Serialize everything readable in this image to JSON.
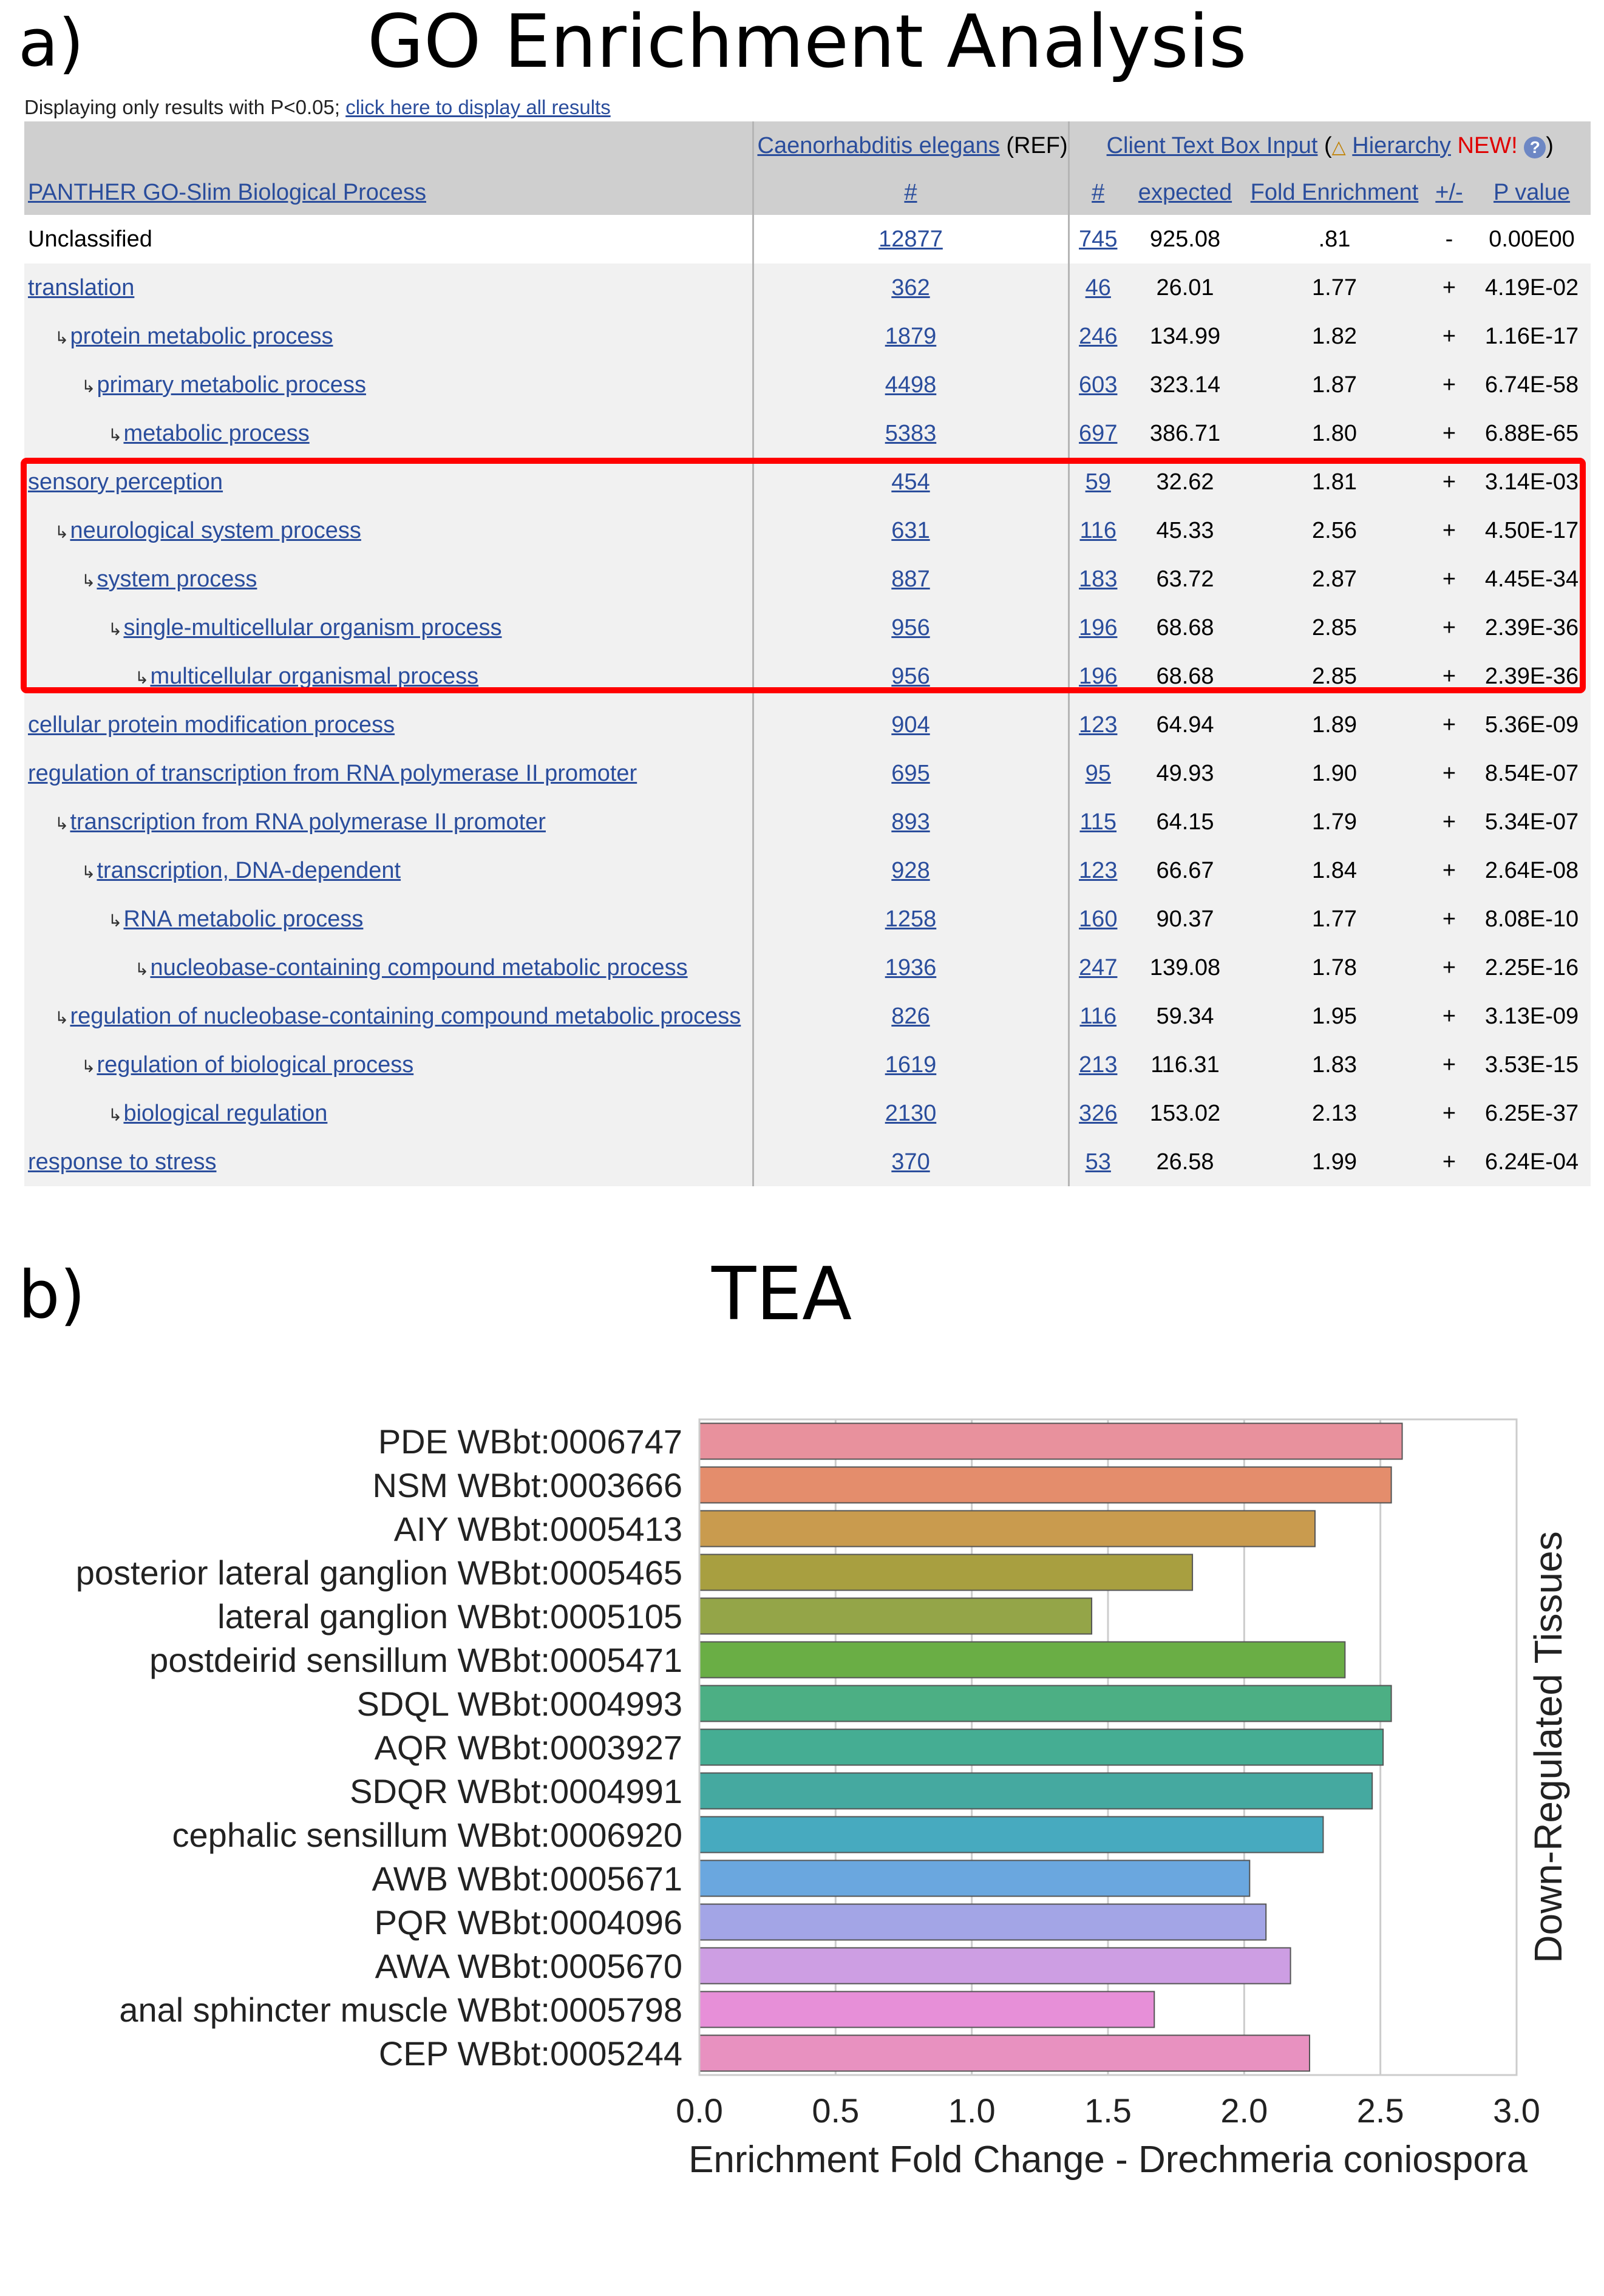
{
  "panel_a": {
    "label": "a)",
    "title": "GO Enrichment Analysis",
    "filter_note": "Displaying only results with P<0.05;",
    "filter_link": "click here to display all results",
    "table": {
      "ref_organism": "Caenorhabditis elegans",
      "ref_suffix": "(REF)",
      "client_input": "Client Text Box Input",
      "client_open": "(",
      "warn_icon": "warning-triangle-icon",
      "hierarchy_link": "Hierarchy",
      "new_label": "NEW!",
      "client_close": ")",
      "help_icon": "question-icon",
      "col_process": "PANTHER GO-Slim Biological Process",
      "col_ref_count": "#",
      "col_count": "#",
      "col_expected": "expected",
      "col_fold": "Fold Enrichment",
      "col_sign": "+/-",
      "col_p": "P value",
      "rows": [
        {
          "indent": 0,
          "name": "Unclassified",
          "ref": "12877",
          "count": "745",
          "expected": "925.08",
          "fold": ".81",
          "sign": "-",
          "p": "0.00E00"
        },
        {
          "indent": 0,
          "name": "translation",
          "ref": "362",
          "count": "46",
          "expected": "26.01",
          "fold": "1.77",
          "sign": "+",
          "p": "4.19E-02"
        },
        {
          "indent": 1,
          "name": "protein metabolic process",
          "ref": "1879",
          "count": "246",
          "expected": "134.99",
          "fold": "1.82",
          "sign": "+",
          "p": "1.16E-17"
        },
        {
          "indent": 2,
          "name": "primary metabolic process",
          "ref": "4498",
          "count": "603",
          "expected": "323.14",
          "fold": "1.87",
          "sign": "+",
          "p": "6.74E-58"
        },
        {
          "indent": 3,
          "name": "metabolic process",
          "ref": "5383",
          "count": "697",
          "expected": "386.71",
          "fold": "1.80",
          "sign": "+",
          "p": "6.88E-65"
        },
        {
          "indent": 0,
          "name": "sensory perception",
          "ref": "454",
          "count": "59",
          "expected": "32.62",
          "fold": "1.81",
          "sign": "+",
          "p": "3.14E-03"
        },
        {
          "indent": 1,
          "name": "neurological system process",
          "ref": "631",
          "count": "116",
          "expected": "45.33",
          "fold": "2.56",
          "sign": "+",
          "p": "4.50E-17"
        },
        {
          "indent": 2,
          "name": "system process",
          "ref": "887",
          "count": "183",
          "expected": "63.72",
          "fold": "2.87",
          "sign": "+",
          "p": "4.45E-34"
        },
        {
          "indent": 3,
          "name": "single-multicellular organism process",
          "ref": "956",
          "count": "196",
          "expected": "68.68",
          "fold": "2.85",
          "sign": "+",
          "p": "2.39E-36"
        },
        {
          "indent": 4,
          "name": "multicellular organismal process",
          "ref": "956",
          "count": "196",
          "expected": "68.68",
          "fold": "2.85",
          "sign": "+",
          "p": "2.39E-36"
        },
        {
          "indent": 0,
          "name": "cellular protein modification process",
          "ref": "904",
          "count": "123",
          "expected": "64.94",
          "fold": "1.89",
          "sign": "+",
          "p": "5.36E-09"
        },
        {
          "indent": 0,
          "name": "regulation of transcription from RNA polymerase II promoter",
          "ref": "695",
          "count": "95",
          "expected": "49.93",
          "fold": "1.90",
          "sign": "+",
          "p": "8.54E-07"
        },
        {
          "indent": 1,
          "name": "transcription from RNA polymerase II promoter",
          "ref": "893",
          "count": "115",
          "expected": "64.15",
          "fold": "1.79",
          "sign": "+",
          "p": "5.34E-07"
        },
        {
          "indent": 2,
          "name": "transcription, DNA-dependent",
          "ref": "928",
          "count": "123",
          "expected": "66.67",
          "fold": "1.84",
          "sign": "+",
          "p": "2.64E-08"
        },
        {
          "indent": 3,
          "name": "RNA metabolic process",
          "ref": "1258",
          "count": "160",
          "expected": "90.37",
          "fold": "1.77",
          "sign": "+",
          "p": "8.08E-10"
        },
        {
          "indent": 4,
          "name": "nucleobase-containing compound metabolic process",
          "ref": "1936",
          "count": "247",
          "expected": "139.08",
          "fold": "1.78",
          "sign": "+",
          "p": "2.25E-16"
        },
        {
          "indent": 1,
          "name": "regulation of nucleobase-containing compound metabolic process",
          "ref": "826",
          "count": "116",
          "expected": "59.34",
          "fold": "1.95",
          "sign": "+",
          "p": "3.13E-09"
        },
        {
          "indent": 2,
          "name": "regulation of biological process",
          "ref": "1619",
          "count": "213",
          "expected": "116.31",
          "fold": "1.83",
          "sign": "+",
          "p": "3.53E-15"
        },
        {
          "indent": 3,
          "name": "biological regulation",
          "ref": "2130",
          "count": "326",
          "expected": "153.02",
          "fold": "2.13",
          "sign": "+",
          "p": "6.25E-37"
        },
        {
          "indent": 0,
          "name": "response to stress",
          "ref": "370",
          "count": "53",
          "expected": "26.58",
          "fold": "1.99",
          "sign": "+",
          "p": "6.24E-04"
        }
      ]
    }
  },
  "panel_b": {
    "label": "b)",
    "title": "TEA"
  },
  "colors": {
    "link": "#2a4d9c",
    "highlight": "#ff0000",
    "new_tag": "#e00000",
    "header_bg": "#cfcfcf"
  },
  "chart_data": {
    "type": "bar",
    "orientation": "horizontal",
    "title": "TEA",
    "xlabel": "Enrichment Fold Change - Drechmeria coniospora",
    "ylabel": "Down-Regulated Tissues",
    "xlim": [
      0.0,
      3.0
    ],
    "xticks": [
      "0.0",
      "0.5",
      "1.0",
      "1.5",
      "2.0",
      "2.5",
      "3.0"
    ],
    "grid": true,
    "categories": [
      "PDE WBbt:0006747",
      "NSM WBbt:0003666",
      "AIY WBbt:0005413",
      "posterior lateral ganglion WBbt:0005465",
      "lateral ganglion WBbt:0005105",
      "postdeirid sensillum WBbt:0005471",
      "SDQL WBbt:0004993",
      "AQR WBbt:0003927",
      "SDQR WBbt:0004991",
      "cephalic sensillum WBbt:0006920",
      "AWB WBbt:0005671",
      "PQR WBbt:0004096",
      "AWA WBbt:0005670",
      "anal sphincter muscle WBbt:0005798",
      "CEP WBbt:0005244"
    ],
    "values": [
      2.58,
      2.54,
      2.26,
      1.81,
      1.44,
      2.37,
      2.54,
      2.51,
      2.47,
      2.29,
      2.02,
      2.08,
      2.17,
      1.67,
      2.24
    ],
    "bar_colors": [
      "#e8919d",
      "#e48d6c",
      "#c99b4e",
      "#a89f40",
      "#94a548",
      "#6aae45",
      "#4caf84",
      "#45ad93",
      "#45a9a0",
      "#47aabf",
      "#6aa7df",
      "#a3a5e6",
      "#cd9ee3",
      "#e78fd8",
      "#e891c0"
    ]
  }
}
